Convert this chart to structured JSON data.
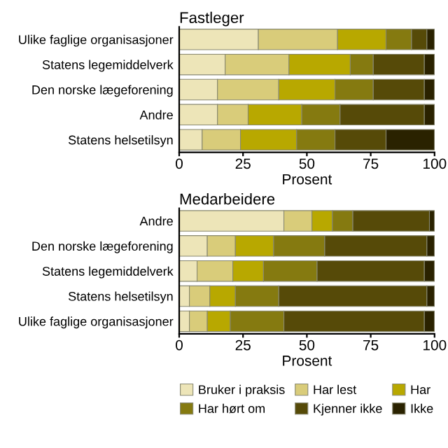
{
  "chart_data": [
    {
      "type": "bar",
      "orientation": "horizontal",
      "stacked": true,
      "title": "Fastleger",
      "xlabel": "Prosent",
      "categories": [
        "Ulike faglige organisasjoner",
        "Statens legemiddelverk",
        "Den norske lægeforening",
        "Andre",
        "Statens helsetilsyn"
      ],
      "xlim": [
        0,
        100
      ],
      "xticks": [
        0,
        25,
        50,
        75,
        100
      ],
      "grid": false,
      "series": [
        {
          "color": "#ede5b8",
          "values": [
            31,
            18,
            15,
            15,
            9
          ]
        },
        {
          "color": "#d9cc7a",
          "values": [
            31,
            25,
            24,
            12,
            15
          ]
        },
        {
          "color": "#b8a800",
          "values": [
            19,
            24,
            22,
            21,
            22
          ]
        },
        {
          "color": "#857a10",
          "values": [
            10,
            9,
            15,
            15,
            15
          ]
        },
        {
          "color": "#564a08",
          "values": [
            6,
            20,
            20,
            33,
            20
          ]
        },
        {
          "color": "#2a2200",
          "values": [
            3,
            4,
            4,
            4,
            19
          ]
        }
      ]
    },
    {
      "type": "bar",
      "orientation": "horizontal",
      "stacked": true,
      "title": "Medarbeidere",
      "xlabel": "Prosent",
      "categories": [
        "Andre",
        "Den norske lægeforening",
        "Statens legemiddelverk",
        "Statens helsetilsyn",
        "Ulike faglige organisasjoner"
      ],
      "xlim": [
        0,
        100
      ],
      "xticks": [
        0,
        25,
        50,
        75,
        100
      ],
      "grid": false,
      "legend": "bottom",
      "series": [
        {
          "name": "Bruker i praksis",
          "color": "#ede5b8",
          "values": [
            41,
            11,
            7,
            4,
            4
          ]
        },
        {
          "name": "Har lest",
          "color": "#d9cc7a",
          "values": [
            11,
            11,
            14,
            8,
            7
          ]
        },
        {
          "name": "Har",
          "color": "#b8a800",
          "values": [
            8,
            15,
            12,
            10,
            9
          ]
        },
        {
          "name": "Har hørt om",
          "color": "#857a10",
          "values": [
            8,
            20,
            21,
            17,
            21
          ]
        },
        {
          "name": "Kjenner ikke",
          "color": "#564a08",
          "values": [
            30,
            40,
            42,
            58,
            55
          ]
        },
        {
          "name": "Ikke",
          "color": "#2a2200",
          "values": [
            2,
            3,
            4,
            3,
            4
          ]
        }
      ]
    }
  ]
}
